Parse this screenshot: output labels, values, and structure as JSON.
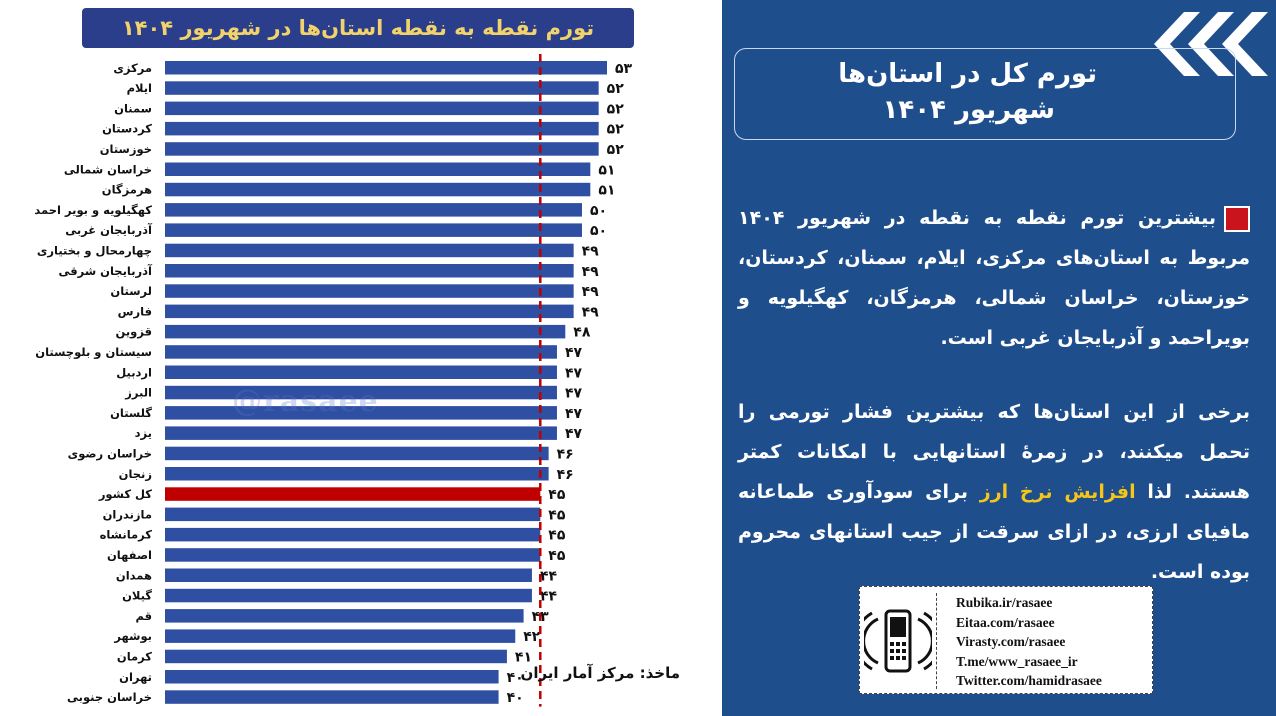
{
  "chart_data": {
    "type": "bar",
    "orientation": "horizontal",
    "title": "تورم نقطه به نقطه استان‌ها در شهریور ۱۴۰۴",
    "categories": [
      "مرکزی",
      "ایلام",
      "سمنان",
      "کردستان",
      "خوزستان",
      "خراسان شمالی",
      "هرمزگان",
      "کهگیلویه و بویر احمد",
      "آذربایجان غربی",
      "چهارمحال و بختیاری",
      "آذربایجان شرقی",
      "لرستان",
      "فارس",
      "قزوین",
      "سیستان و بلوچستان",
      "اردبیل",
      "البرز",
      "گلستان",
      "یزد",
      "خراسان رضوی",
      "زنجان",
      "کل کشور",
      "مازندران",
      "کرمانشاه",
      "اصفهان",
      "همدان",
      "گیلان",
      "قم",
      "بوشهر",
      "کرمان",
      "تهران",
      "خراسان جنوبی"
    ],
    "values": [
      53,
      52,
      52,
      52,
      52,
      51,
      51,
      50,
      50,
      49,
      49,
      49,
      49,
      48,
      47,
      47,
      47,
      47,
      47,
      46,
      46,
      45,
      45,
      45,
      45,
      44,
      44,
      43,
      42,
      41,
      40,
      40
    ],
    "value_labels": [
      "۵۳",
      "۵۲",
      "۵۲",
      "۵۲",
      "۵۲",
      "۵۱",
      "۵۱",
      "۵۰",
      "۵۰",
      "۴۹",
      "۴۹",
      "۴۹",
      "۴۹",
      "۴۸",
      "۴۷",
      "۴۷",
      "۴۷",
      "۴۷",
      "۴۷",
      "۴۶",
      "۴۶",
      "۴۵",
      "۴۵",
      "۴۵",
      "۴۵",
      "۴۴",
      "۴۴",
      "۴۳",
      "۴۲",
      "۴۱",
      "۴۰",
      "۴۰"
    ],
    "highlight_category": "کل کشور",
    "reference_line": 45,
    "xlim": [
      0,
      53
    ],
    "grid": false,
    "colors": {
      "bar": "#2f4fa3",
      "highlight": "#c00000",
      "reference": "#c00000"
    }
  },
  "source_note": "ماخذ: مرکز آمار ایران",
  "watermark": "@rasaee",
  "right_panel": {
    "headline_line1": "تورم کل در استان‌ها",
    "headline_line2": "شهریور ۱۴۰۴",
    "paragraph1": "بیشترین تورم نقطه به نقطه در شهریور ۱۴۰۴ مربوط به استان‌های مرکزی، ایلام، سمنان، کردستان، خوزستان، خراسان شمالی، هرمزگان، کهگیلویه و بویراحمد و آذربایجان غربی است.",
    "paragraph2_before": "برخی از این استان‌ها که بیشترین فشار تورمی را تحمل میکنند، در زمرۀ استانهایی با امکانات کمتر هستند. لذا ",
    "paragraph2_highlight": "افزایش نرخ ارز",
    "paragraph2_after": " برای سودآوری طماعانه مافیای ارزی، در ازای سرقت از جیب استانهای محروم بوده است.",
    "colors": {
      "background": "#1f4e8c",
      "highlight": "#f5c518",
      "marker": "#c9141e"
    }
  },
  "contacts": [
    "Rubika.ir/rasaee",
    "Eitaa.com/rasaee",
    "Virasty.com/rasaee",
    "T.me/www_rasaee_ir",
    "Twitter.com/hamidrasaee"
  ]
}
